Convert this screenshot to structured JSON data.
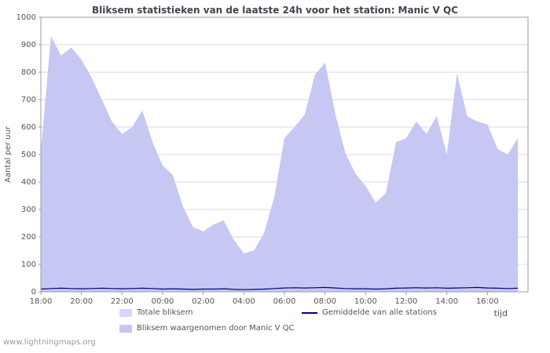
{
  "watermark": "www.lightningmaps.org",
  "chart_data": {
    "type": "area",
    "title": "Bliksem statistieken van de laatste 24h voor het station: Manic V QC",
    "ylabel": "Aantal per uur",
    "xlabel": "tijd",
    "ylim": [
      0,
      1000
    ],
    "ytick_step": 100,
    "grid": true,
    "legend_position": "bottom",
    "x_span_hours": 24,
    "x_ticks": [
      {
        "hour": 0,
        "label": "18:00"
      },
      {
        "hour": 2,
        "label": "20:00"
      },
      {
        "hour": 4,
        "label": "22:00"
      },
      {
        "hour": 6,
        "label": "00:00"
      },
      {
        "hour": 8,
        "label": "02:00"
      },
      {
        "hour": 10,
        "label": "04:00"
      },
      {
        "hour": 12,
        "label": "06:00"
      },
      {
        "hour": 14,
        "label": "08:00"
      },
      {
        "hour": 16,
        "label": "10:00"
      },
      {
        "hour": 18,
        "label": "12:00"
      },
      {
        "hour": 20,
        "label": "14:00"
      },
      {
        "hour": 22,
        "label": "16:00"
      }
    ],
    "x_hours": [
      0,
      0.5,
      1,
      1.5,
      2,
      2.5,
      3,
      3.5,
      4,
      4.5,
      5,
      5.5,
      6,
      6.5,
      7,
      7.5,
      8,
      8.5,
      9,
      9.5,
      10,
      10.5,
      11,
      11.5,
      12,
      12.5,
      13,
      13.5,
      14,
      14.5,
      15,
      15.5,
      16,
      16.5,
      17,
      17.5,
      18,
      18.5,
      19,
      19.5,
      20,
      20.5,
      21,
      21.5,
      22,
      22.5,
      23,
      23.5
    ],
    "series": [
      {
        "name": "Totale bliksem",
        "type": "area",
        "color": "#d7d7fa",
        "values": [
          510,
          930,
          860,
          890,
          845,
          780,
          700,
          620,
          575,
          600,
          660,
          545,
          460,
          425,
          310,
          235,
          220,
          245,
          260,
          190,
          140,
          150,
          215,
          345,
          560,
          600,
          645,
          790,
          835,
          650,
          505,
          430,
          385,
          325,
          360,
          545,
          560,
          620,
          575,
          640,
          500,
          795,
          640,
          620,
          610,
          520,
          500,
          560
        ]
      },
      {
        "name": "Bliksem waargenomen door Manic V QC",
        "type": "area",
        "color": "#c7c7f3",
        "values": [
          510,
          930,
          860,
          890,
          845,
          780,
          700,
          620,
          575,
          600,
          660,
          545,
          460,
          425,
          310,
          235,
          220,
          245,
          260,
          190,
          140,
          150,
          215,
          345,
          560,
          600,
          645,
          790,
          835,
          650,
          505,
          430,
          385,
          325,
          360,
          545,
          560,
          620,
          575,
          640,
          500,
          795,
          640,
          620,
          610,
          520,
          500,
          560
        ]
      },
      {
        "name": "Gemiddelde van alle stations",
        "type": "line",
        "color": "#000080",
        "values": [
          10,
          12,
          13,
          12,
          11,
          12,
          13,
          12,
          11,
          12,
          13,
          12,
          10,
          11,
          10,
          9,
          10,
          10,
          11,
          9,
          8,
          9,
          10,
          12,
          14,
          15,
          14,
          15,
          16,
          14,
          12,
          11,
          11,
          10,
          11,
          13,
          14,
          15,
          14,
          15,
          13,
          14,
          15,
          16,
          14,
          13,
          12,
          13
        ]
      }
    ]
  }
}
